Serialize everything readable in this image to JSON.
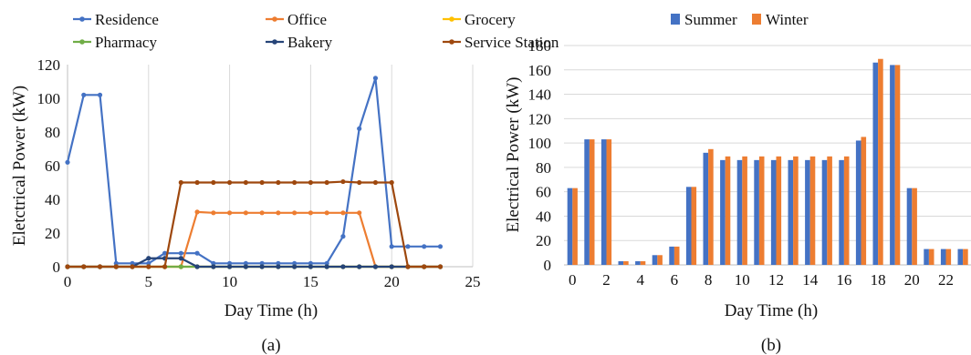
{
  "chart_data": [
    {
      "type": "line",
      "caption": "(a)",
      "xlabel": "Day Time (h)",
      "ylabel": "Eletctrical Power  (kW)",
      "xlim": [
        0,
        25
      ],
      "ylim": [
        0,
        120
      ],
      "xticks": [
        0,
        5,
        10,
        15,
        20,
        25
      ],
      "yticks": [
        0,
        20,
        40,
        60,
        80,
        100,
        120
      ],
      "grid": "vertical",
      "legend": "top",
      "x": [
        0,
        1,
        2,
        3,
        4,
        5,
        6,
        7,
        8,
        9,
        10,
        11,
        12,
        13,
        14,
        15,
        16,
        17,
        18,
        19,
        20,
        21,
        22,
        23
      ],
      "series": [
        {
          "name": "Residence",
          "color": "#4472C4",
          "values": [
            62,
            102,
            102,
            2,
            2,
            2,
            8,
            8,
            8,
            2,
            2,
            2,
            2,
            2,
            2,
            2,
            2,
            18,
            82,
            112,
            12,
            12,
            12,
            12
          ]
        },
        {
          "name": "Office",
          "color": "#ED7D31",
          "values": [
            0,
            0,
            0,
            0,
            0,
            0,
            0,
            0,
            32.5,
            32,
            32,
            32,
            32,
            32,
            32,
            32,
            32,
            32,
            32,
            0,
            0,
            0,
            0,
            0
          ]
        },
        {
          "name": "Grocery",
          "color": "#FFC000",
          "values": [
            0,
            0,
            0,
            0,
            0,
            0,
            0,
            0,
            0,
            0,
            0,
            0,
            0,
            0,
            0,
            0,
            0,
            0,
            0,
            0,
            0,
            0,
            0,
            0
          ]
        },
        {
          "name": "Pharmacy",
          "color": "#70AD47",
          "values": [
            0,
            0,
            0,
            0,
            0,
            0,
            0,
            0,
            0,
            0,
            0,
            0,
            0,
            0,
            0,
            0,
            0,
            0,
            0,
            0,
            0,
            0,
            0,
            0
          ]
        },
        {
          "name": "Bakery",
          "color": "#264478",
          "values": [
            0,
            0,
            0,
            0,
            0,
            5,
            5,
            5,
            0,
            0,
            0,
            0,
            0,
            0,
            0,
            0,
            0,
            0,
            0,
            0,
            0,
            0,
            0,
            0
          ]
        },
        {
          "name": "Service Station",
          "color": "#9E480E",
          "values": [
            0,
            0,
            0,
            0,
            0,
            0,
            0,
            50,
            50,
            50,
            50,
            50,
            50,
            50,
            50,
            50,
            50,
            50.5,
            50,
            50,
            50,
            0,
            0,
            0
          ]
        }
      ]
    },
    {
      "type": "bar",
      "caption": "(b)",
      "xlabel": "Day Time (h)",
      "ylabel": "Electrical Power (kW)",
      "ylim": [
        0,
        180
      ],
      "yticks": [
        0,
        20,
        40,
        60,
        80,
        100,
        120,
        140,
        160,
        180
      ],
      "grid": "horizontal",
      "legend": "top",
      "categories": [
        "0",
        "1",
        "2",
        "3",
        "4",
        "5",
        "6",
        "7",
        "8",
        "9",
        "10",
        "11",
        "12",
        "13",
        "14",
        "15",
        "16",
        "17",
        "18",
        "19",
        "20",
        "21",
        "22",
        "23"
      ],
      "xtick_labels": [
        "0",
        "",
        "2",
        "",
        "4",
        "",
        "6",
        "",
        "8",
        "",
        "10",
        "",
        "12",
        "",
        "14",
        "",
        "16",
        "",
        "18",
        "",
        "20",
        "",
        "22",
        ""
      ],
      "series": [
        {
          "name": "Summer",
          "color": "#4472C4",
          "values": [
            63,
            103,
            103,
            3,
            3,
            8,
            15,
            64,
            92,
            86,
            86,
            86,
            86,
            86,
            86,
            86,
            86,
            102,
            166,
            164,
            63,
            13,
            13,
            13
          ]
        },
        {
          "name": "Winter",
          "color": "#ED7D31",
          "values": [
            63,
            103,
            103,
            3,
            3,
            8,
            15,
            64,
            95,
            89,
            89,
            89,
            89,
            89,
            89,
            89,
            89,
            105,
            169,
            164,
            63,
            13,
            13,
            13
          ]
        }
      ]
    }
  ]
}
